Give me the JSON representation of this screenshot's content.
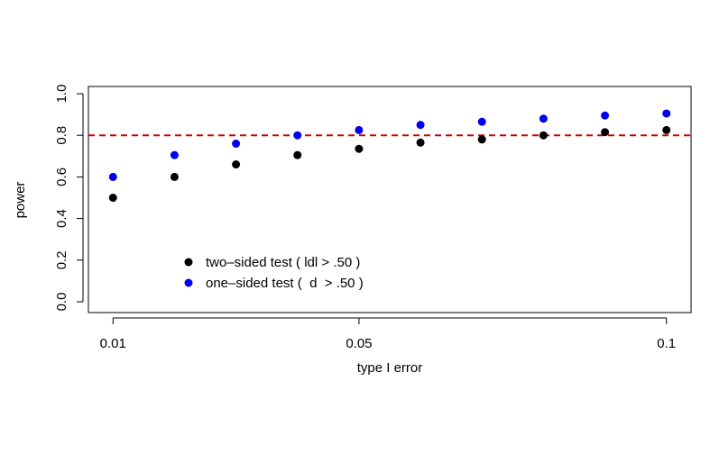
{
  "chart_data": {
    "type": "scatter",
    "title": "",
    "xlabel": "type I error",
    "ylabel": "power",
    "x": [
      0.01,
      0.02,
      0.03,
      0.04,
      0.05,
      0.06,
      0.07,
      0.08,
      0.09,
      0.1
    ],
    "series": [
      {
        "name": "two–sided test ( ldl > .50 )",
        "color": "#000000",
        "values": [
          0.5,
          0.6,
          0.66,
          0.705,
          0.735,
          0.765,
          0.78,
          0.8,
          0.815,
          0.825
        ]
      },
      {
        "name": "one–sided test (  d  > .50 )",
        "color": "#0000ee",
        "values": [
          0.6,
          0.705,
          0.76,
          0.8,
          0.825,
          0.85,
          0.865,
          0.88,
          0.895,
          0.905
        ]
      }
    ],
    "reference_line": {
      "y": 0.8,
      "color": "#cc0000",
      "style": "dashed"
    },
    "xlim": [
      0.006,
      0.104
    ],
    "ylim": [
      0.0,
      1.0
    ],
    "x_ticks": [
      {
        "value": 0.01,
        "label": "0.01"
      },
      {
        "value": 0.05,
        "label": "0.05"
      },
      {
        "value": 0.1,
        "label": "0.1"
      }
    ],
    "y_ticks": [
      {
        "value": 0.0,
        "label": "0.0"
      },
      {
        "value": 0.2,
        "label": "0.2"
      },
      {
        "value": 0.4,
        "label": "0.4"
      },
      {
        "value": 0.6,
        "label": "0.6"
      },
      {
        "value": 0.8,
        "label": "0.8"
      },
      {
        "value": 1.0,
        "label": "1.0"
      }
    ],
    "legend_position": "bottom-left",
    "grid": false
  }
}
